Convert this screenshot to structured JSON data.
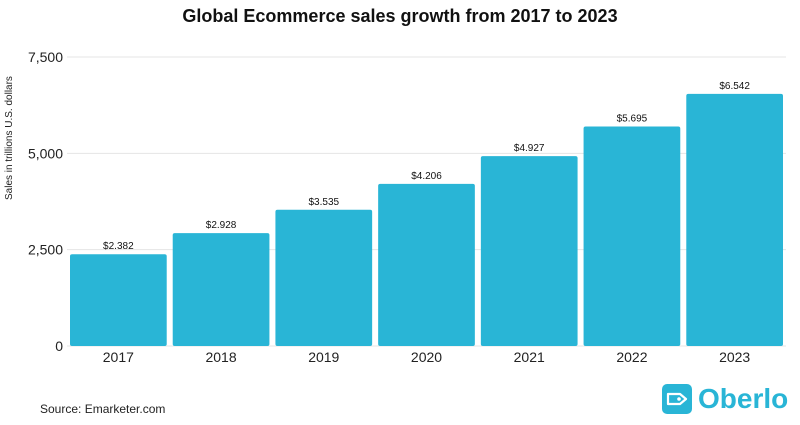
{
  "colors": {
    "bar": "#29b5d6",
    "grid": "#e5e5e5",
    "text": "#222222",
    "brand": "#29b5d6"
  },
  "brand": {
    "name": "Oberlo",
    "icon": "tag-icon"
  },
  "source": "Source: Emarketer.com",
  "chart_data": {
    "type": "bar",
    "title": "Global Ecommerce sales growth from 2017 to 2023",
    "xlabel": "",
    "ylabel": "Sales in trillions U.S. dollars",
    "categories": [
      "2017",
      "2018",
      "2019",
      "2020",
      "2021",
      "2022",
      "2023"
    ],
    "values": [
      2.382,
      2.928,
      3.535,
      4.206,
      4.927,
      5.695,
      6.542
    ],
    "data_labels": [
      "$2.382",
      "$2.928",
      "$3.535",
      "$4.206",
      "$4.927",
      "$5.695",
      "$6.542"
    ],
    "yticks": [
      0,
      2.5,
      5,
      7.5
    ],
    "ytick_labels": [
      "0",
      "2,500",
      "5,000",
      "7,500"
    ],
    "ylim": [
      0,
      7.5
    ],
    "grid": true,
    "legend": "none"
  }
}
